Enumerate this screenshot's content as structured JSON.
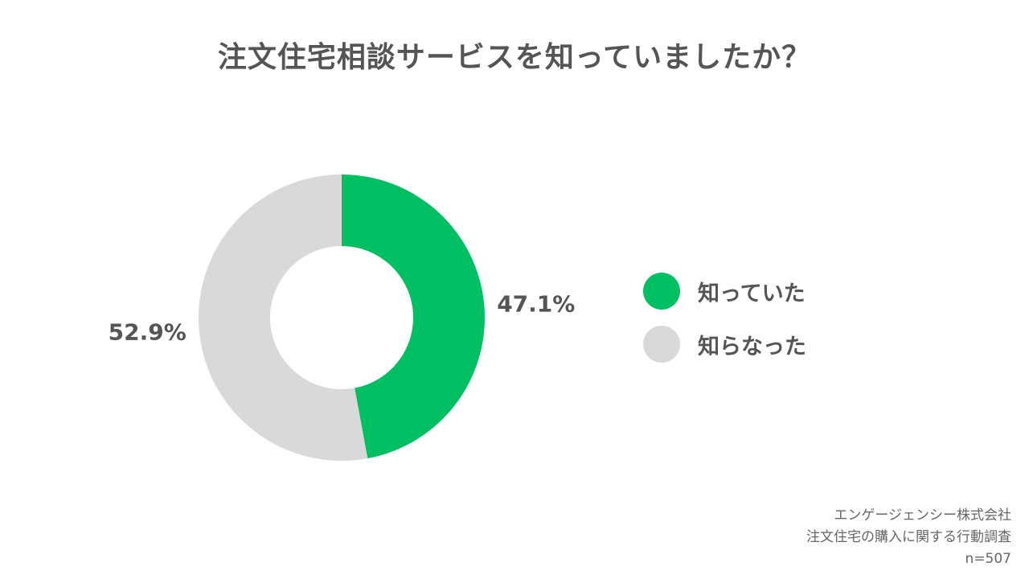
{
  "chart_data": {
    "type": "pie",
    "title": "注文住宅相談サービスを知っていましたか？",
    "slices": [
      {
        "label": "知っていた",
        "value": 47.1,
        "value_label": "47.1%",
        "color": "#00bf63"
      },
      {
        "label": "知らなった",
        "value": 52.9,
        "value_label": "52.9%",
        "color": "#d9d9d9"
      }
    ],
    "legend_position": "right",
    "hole": "donut"
  },
  "source": {
    "company": "エンゲージェンシー株式会社",
    "survey": "注文住宅の購入に関する行動調査",
    "n": "n=507"
  }
}
